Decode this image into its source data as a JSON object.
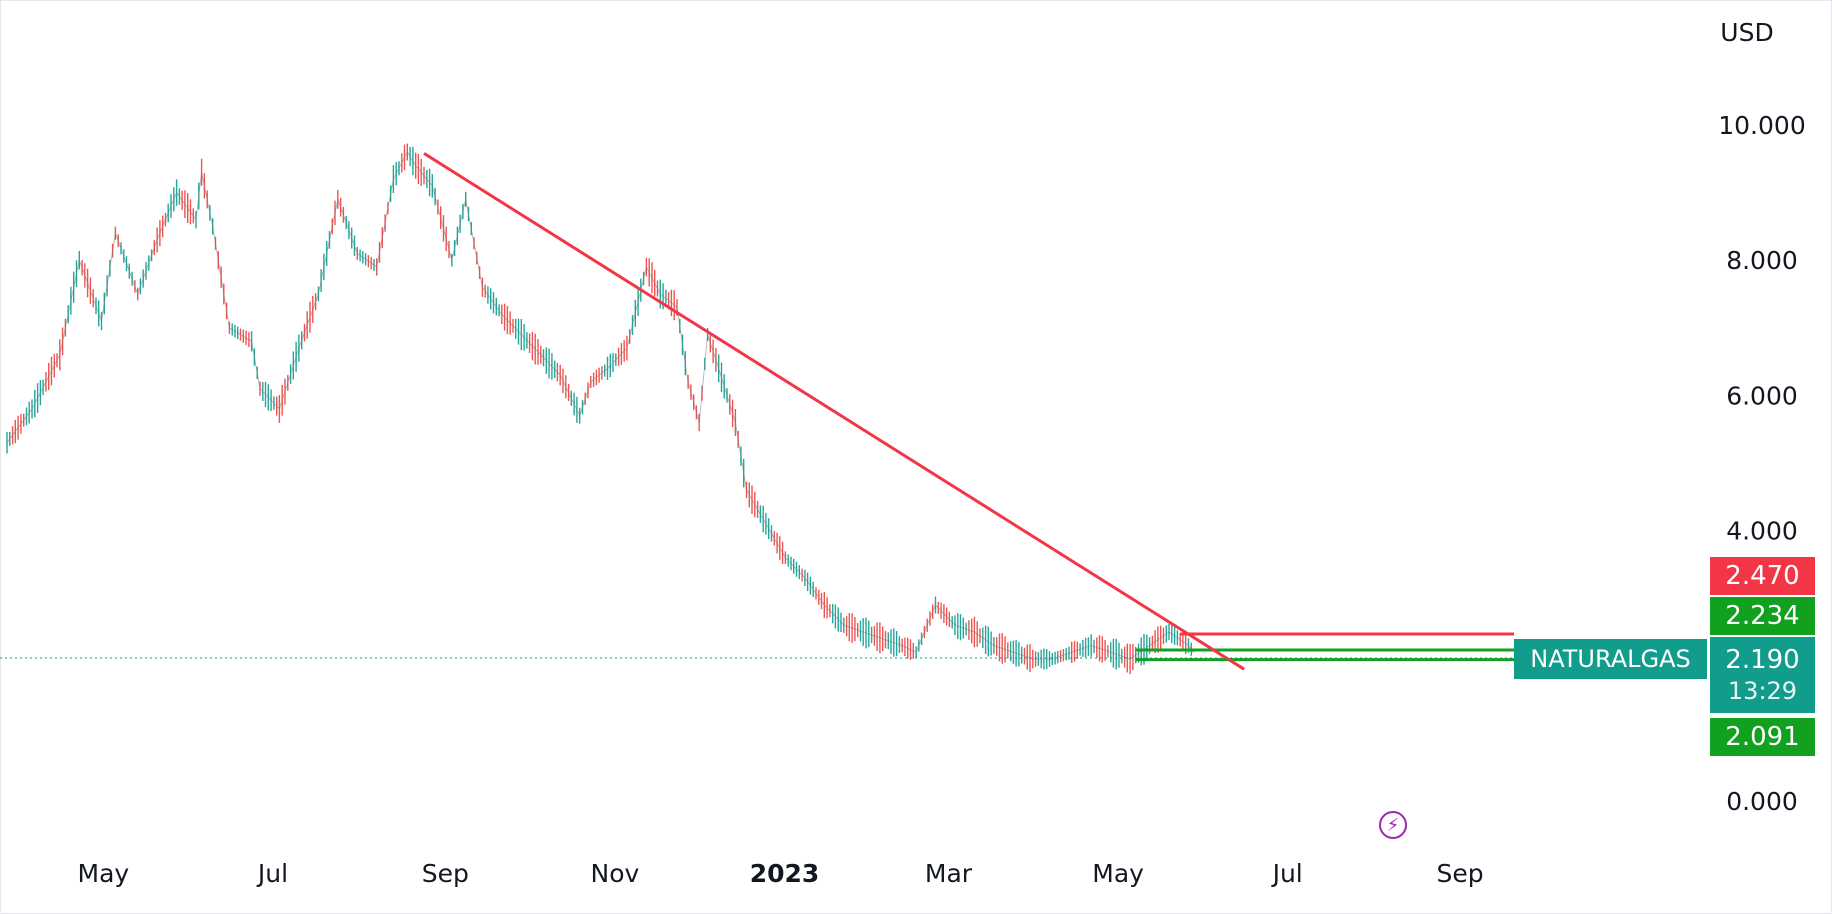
{
  "currency_label": "USD",
  "symbol": "NATURALGAS",
  "last_price": "2.190",
  "countdown": "13:29",
  "price_badges": {
    "upper_sell": "2.470",
    "upper_buy": "2.234",
    "lower_buy": "2.091"
  },
  "colors": {
    "up": "#26a69a",
    "down": "#ef5350",
    "trendline": "#f23645",
    "sell_line": "#f23645",
    "buy_line": "#12a01f",
    "last_price": "#119c8c",
    "grid_axis_text": "#131722",
    "flash_icon": "#9c27b0"
  },
  "icons": {
    "flash": "flash-icon"
  },
  "chart_data": {
    "type": "line",
    "ylabel": "USD",
    "y_ticks": [
      "10.000",
      "8.000",
      "6.000",
      "4.000",
      "0.000"
    ],
    "x_ticks": [
      "May",
      "Jul",
      "Sep",
      "Nov",
      "2023",
      "Mar",
      "May",
      "Jul",
      "Sep"
    ],
    "ylim": [
      -0.4,
      11.8
    ],
    "grid": false,
    "series": [
      {
        "values_dates": [
          "2022-04-01",
          "2022-04-10",
          "2022-04-20",
          "2022-04-27",
          "2022-05-05",
          "2022-05-10",
          "2022-05-18",
          "2022-05-25",
          "2022-06-01",
          "2022-06-08",
          "2022-06-10",
          "2022-06-14",
          "2022-06-20",
          "2022-06-28",
          "2022-07-01",
          "2022-07-08",
          "2022-07-15",
          "2022-07-22",
          "2022-07-29",
          "2022-08-05",
          "2022-08-12",
          "2022-08-18",
          "2022-08-23",
          "2022-08-26",
          "2022-09-01",
          "2022-09-08",
          "2022-09-13",
          "2022-09-19",
          "2022-09-26",
          "2022-10-03",
          "2022-10-10",
          "2022-10-17",
          "2022-10-24",
          "2022-10-28",
          "2022-11-03",
          "2022-11-10",
          "2022-11-17",
          "2022-11-22",
          "2022-11-28",
          "2022-12-02",
          "2022-12-06",
          "2022-12-09",
          "2022-12-13",
          "2022-12-19",
          "2022-12-23",
          "2022-12-30",
          "2023-01-06",
          "2023-01-13",
          "2023-01-20",
          "2023-01-27",
          "2023-02-03",
          "2023-02-10",
          "2023-02-17",
          "2023-02-22",
          "2023-03-01",
          "2023-03-08",
          "2023-03-15",
          "2023-03-22",
          "2023-03-29",
          "2023-04-05",
          "2023-04-12",
          "2023-04-19",
          "2023-04-26",
          "2023-05-03",
          "2023-05-10",
          "2023-05-17",
          "2023-05-24",
          "2023-05-31",
          "2023-06-02"
        ],
        "values": [
          5.3,
          5.8,
          6.6,
          8.0,
          7.1,
          8.4,
          7.5,
          8.3,
          9.0,
          8.6,
          9.3,
          8.5,
          7.0,
          6.8,
          6.1,
          5.8,
          6.7,
          7.5,
          8.9,
          8.1,
          7.9,
          9.2,
          9.6,
          9.4,
          9.1,
          8.0,
          8.9,
          7.6,
          7.2,
          6.9,
          6.6,
          6.3,
          5.7,
          6.2,
          6.4,
          6.7,
          7.9,
          7.5,
          7.3,
          6.2,
          5.6,
          6.9,
          6.4,
          5.6,
          4.6,
          4.1,
          3.6,
          3.3,
          2.9,
          2.6,
          2.5,
          2.4,
          2.3,
          2.2,
          2.9,
          2.6,
          2.5,
          2.3,
          2.2,
          2.1,
          2.1,
          2.2,
          2.3,
          2.2,
          2.1,
          2.3,
          2.5,
          2.3,
          2.19
        ],
        "name": ""
      }
    ],
    "trendline": {
      "from": [
        "2022-08-29",
        9.58
      ],
      "to": [
        "2023-06-20",
        1.95
      ]
    },
    "levels": [
      {
        "kind": "sell",
        "value": 2.47,
        "from": "2023-05-28",
        "to": "2023-07-12"
      },
      {
        "kind": "buy",
        "value": 2.234,
        "from": "2023-05-12",
        "to": "2023-07-12"
      },
      {
        "kind": "buy",
        "value": 2.091,
        "from": "2023-05-12",
        "to": "2023-07-12"
      }
    ],
    "last_value": 2.19
  }
}
